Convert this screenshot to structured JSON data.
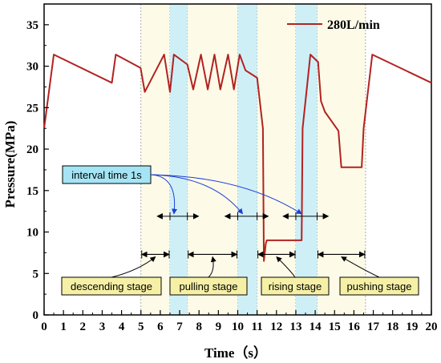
{
  "colors": {
    "series": "#b22222",
    "stage_band": "#fdfbe8",
    "interval_band": "#cfeff7",
    "label_box": "#f6f0a6",
    "interval_box": "#a5e4f4",
    "interval_arrow": "#1f3fd6"
  },
  "chart_data": {
    "type": "line",
    "xlabel": "Time（s）",
    "ylabel": "Pressure(MPa)",
    "xlim": [
      0,
      20
    ],
    "ylim": [
      0,
      37.5
    ],
    "xticks": [
      0,
      1,
      2,
      3,
      4,
      5,
      6,
      7,
      8,
      9,
      10,
      11,
      12,
      13,
      14,
      15,
      16,
      17,
      18,
      19,
      20
    ],
    "yticks": [
      0,
      5,
      10,
      15,
      20,
      25,
      30,
      35
    ],
    "legend": {
      "position": "top-right",
      "label": "280L/min"
    },
    "series": [
      {
        "name": "280L/min",
        "points": [
          [
            0.0,
            22.5
          ],
          [
            0.5,
            31.4
          ],
          [
            3.5,
            28.0
          ],
          [
            3.7,
            31.4
          ],
          [
            4.98,
            29.8
          ],
          [
            5.2,
            26.9
          ],
          [
            6.2,
            31.4
          ],
          [
            6.5,
            26.9
          ],
          [
            6.7,
            31.4
          ],
          [
            7.4,
            30.2
          ],
          [
            7.7,
            27.2
          ],
          [
            8.1,
            31.4
          ],
          [
            8.45,
            27.2
          ],
          [
            8.8,
            31.4
          ],
          [
            9.1,
            27.2
          ],
          [
            9.5,
            31.4
          ],
          [
            9.8,
            27.2
          ],
          [
            10.1,
            31.4
          ],
          [
            10.4,
            29.5
          ],
          [
            11.0,
            28.6
          ],
          [
            11.3,
            22.5
          ],
          [
            11.35,
            6.5
          ],
          [
            11.45,
            8.6
          ],
          [
            11.5,
            9.0
          ],
          [
            13.3,
            9.0
          ],
          [
            13.35,
            22.5
          ],
          [
            13.75,
            31.4
          ],
          [
            14.15,
            30.5
          ],
          [
            14.3,
            25.8
          ],
          [
            14.5,
            24.5
          ],
          [
            15.2,
            22.2
          ],
          [
            15.35,
            17.8
          ],
          [
            16.4,
            17.8
          ],
          [
            16.5,
            22.5
          ],
          [
            16.95,
            31.4
          ],
          [
            20.0,
            28.0
          ]
        ]
      }
    ],
    "stage_bands": [
      [
        5.0,
        6.5
      ],
      [
        7.4,
        10.0
      ],
      [
        11.0,
        13.0
      ],
      [
        14.1,
        16.6
      ]
    ],
    "interval_bands": [
      [
        6.5,
        7.4
      ],
      [
        10.0,
        11.0
      ],
      [
        13.0,
        14.1
      ]
    ],
    "annotations": {
      "interval_label": "interval time 1s",
      "interval_markers": [
        {
          "from": 6.5,
          "to": 7.4,
          "y": 11.9
        },
        {
          "from": 10.0,
          "to": 11.0,
          "y": 11.9
        },
        {
          "from": 13.0,
          "to": 14.1,
          "y": 11.9
        }
      ],
      "stages": [
        {
          "label": "descending stage",
          "from": 5.0,
          "to": 6.5,
          "y": 7.3
        },
        {
          "label": "pulling stage",
          "from": 7.4,
          "to": 10.0,
          "y": 7.3
        },
        {
          "label": "rising stage",
          "from": 11.0,
          "to": 13.0,
          "y": 7.3
        },
        {
          "label": "pushing stage",
          "from": 14.1,
          "to": 16.6,
          "y": 7.3
        }
      ]
    }
  }
}
